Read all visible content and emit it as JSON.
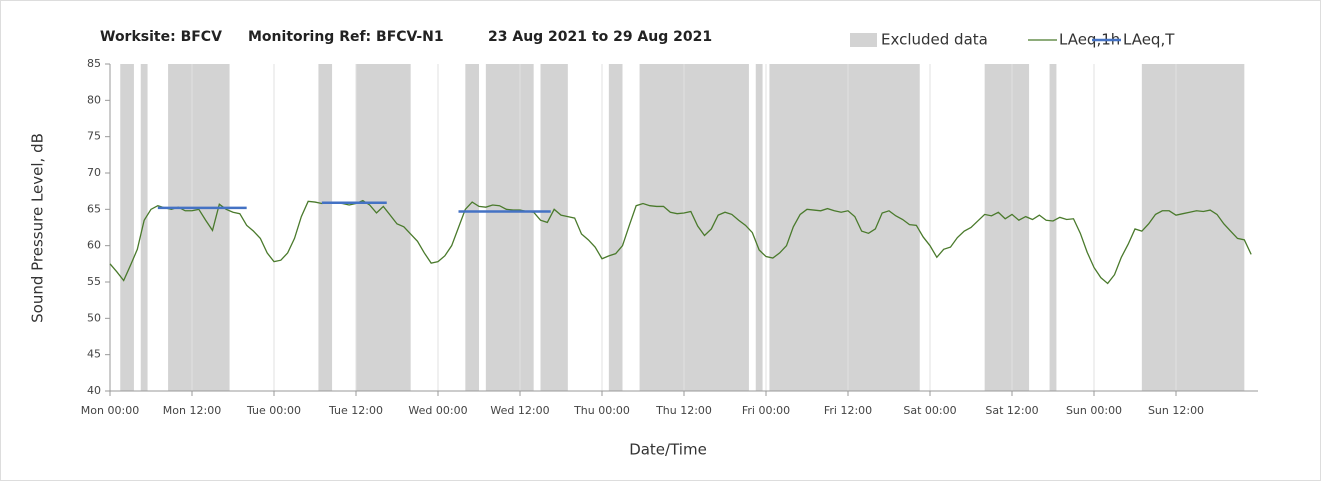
{
  "chart_data": {
    "type": "line",
    "title": [
      "Worksite: BFCV",
      "Monitoring Ref: BFCV-N1",
      "23 Aug 2021 to 29 Aug 2021"
    ],
    "xlabel": "Date/Time",
    "ylabel": "Sound Pressure Level, dB",
    "xlim": [
      0,
      168
    ],
    "xticks": [
      {
        "value": 0,
        "label": "Mon 00:00"
      },
      {
        "value": 12,
        "label": "Mon 12:00"
      },
      {
        "value": 24,
        "label": "Tue 00:00"
      },
      {
        "value": 36,
        "label": "Tue 12:00"
      },
      {
        "value": 48,
        "label": "Wed 00:00"
      },
      {
        "value": 60,
        "label": "Wed 12:00"
      },
      {
        "value": 72,
        "label": "Thu 00:00"
      },
      {
        "value": 84,
        "label": "Thu 12:00"
      },
      {
        "value": 96,
        "label": "Fri 00:00"
      },
      {
        "value": 108,
        "label": "Fri 12:00"
      },
      {
        "value": 120,
        "label": "Sat 00:00"
      },
      {
        "value": 132,
        "label": "Sat 12:00"
      },
      {
        "value": 144,
        "label": "Sun 00:00"
      },
      {
        "value": 156,
        "label": "Sun 12:00"
      }
    ],
    "ylim": [
      40,
      85
    ],
    "yticks": [
      40,
      45,
      50,
      55,
      60,
      65,
      70,
      75,
      80,
      85
    ],
    "grid": true,
    "excluded_name": "Excluded data",
    "excluded_color": "#d3d3d3",
    "excluded": [
      [
        1.5,
        3.5
      ],
      [
        4.5,
        5.5
      ],
      [
        8.5,
        17.5
      ],
      [
        30.5,
        32.5
      ],
      [
        36,
        44
      ],
      [
        52,
        54
      ],
      [
        55,
        62
      ],
      [
        63,
        67
      ],
      [
        73,
        75
      ],
      [
        77.5,
        93.5
      ],
      [
        94.5,
        95.5
      ],
      [
        96.5,
        118.5
      ],
      [
        128,
        134.5
      ],
      [
        137.5,
        138.5
      ],
      [
        151,
        166
      ]
    ],
    "series": [
      {
        "name": "LAeq,1h",
        "color": "#4a7a2c",
        "x": [
          0,
          1,
          2,
          3,
          4,
          5,
          6,
          7,
          8,
          9,
          10,
          11,
          12,
          13,
          14,
          15,
          16,
          17,
          18,
          19,
          20,
          21,
          22,
          23,
          24,
          25,
          26,
          27,
          28,
          29,
          30,
          31,
          32,
          33,
          34,
          35,
          36,
          37,
          38,
          39,
          40,
          41,
          42,
          43,
          44,
          45,
          46,
          47,
          48,
          49,
          50,
          51,
          52,
          53,
          54,
          55,
          56,
          57,
          58,
          59,
          60,
          61,
          62,
          63,
          64,
          65,
          66,
          67,
          68,
          69,
          70,
          71,
          72,
          73,
          74,
          75,
          76,
          77,
          78,
          79,
          80,
          81,
          82,
          83,
          84,
          85,
          86,
          87,
          88,
          89,
          90,
          91,
          92,
          93,
          94,
          95,
          96,
          97,
          98,
          99,
          100,
          101,
          102,
          103,
          104,
          105,
          106,
          107,
          108,
          109,
          110,
          111,
          112,
          113,
          114,
          115,
          116,
          117,
          118,
          119,
          120,
          121,
          122,
          123,
          124,
          125,
          126,
          127,
          128,
          129,
          130,
          131,
          132,
          133,
          134,
          135,
          136,
          137,
          138,
          139,
          140,
          141,
          142,
          143,
          144,
          145,
          146,
          147,
          148,
          149,
          150,
          151,
          152,
          153,
          154,
          155,
          156,
          157,
          158,
          159,
          160,
          161,
          162,
          163,
          164,
          165,
          166,
          167
        ],
        "values": [
          57.5,
          56.4,
          55.2,
          57.3,
          59.5,
          63.5,
          65,
          65.5,
          65.2,
          65,
          65.3,
          64.8,
          64.8,
          65,
          63.5,
          62.1,
          65.7,
          65,
          64.6,
          64.4,
          62.8,
          62,
          61,
          59,
          57.8,
          58,
          59,
          61,
          64,
          66.1,
          66,
          65.8,
          65.9,
          65.9,
          65.8,
          65.6,
          65.8,
          66.2,
          65.6,
          64.5,
          65.4,
          64.2,
          63,
          62.6,
          61.6,
          60.6,
          59,
          57.6,
          57.8,
          58.6,
          60,
          62.5,
          65,
          66,
          65.4,
          65.3,
          65.6,
          65.5,
          65,
          64.9,
          64.9,
          64.7,
          64.6,
          63.5,
          63.2,
          65,
          64.2,
          64,
          63.8,
          61.6,
          60.8,
          59.8,
          58.2,
          58.6,
          58.9,
          60,
          62.8,
          65.5,
          65.8,
          65.5,
          65.4,
          65.4,
          64.6,
          64.4,
          64.5,
          64.7,
          62.7,
          61.4,
          62.3,
          64.2,
          64.6,
          64.3,
          63.5,
          62.8,
          61.8,
          59.4,
          58.5,
          58.3,
          59,
          60,
          62.6,
          64.3,
          65,
          64.9,
          64.8,
          65.1,
          64.8,
          64.6,
          64.8,
          64,
          62,
          61.7,
          62.3,
          64.5,
          64.8,
          64.1,
          63.6,
          62.9,
          62.8,
          61.2,
          60,
          58.4,
          59.5,
          59.8,
          61.1,
          62,
          62.5,
          63.4,
          64.3,
          64.1,
          64.6,
          63.7,
          64.3,
          63.5,
          64,
          63.6,
          64.2,
          63.5,
          63.4,
          63.9,
          63.6,
          63.7,
          61.7,
          59.1,
          57,
          55.6,
          54.8,
          56,
          58.4,
          60.2,
          62.3,
          62,
          63,
          64.3,
          64.8,
          64.8,
          64.2,
          64.4,
          64.6,
          64.8,
          64.7,
          64.9,
          64.3,
          63,
          62,
          61,
          60.8,
          58.8
        ]
      },
      {
        "name": "LAeq,T",
        "color": "#4472c4",
        "segments": [
          {
            "x": [
              7,
              20
            ],
            "value": 65.2
          },
          {
            "x": [
              31,
              40.5
            ],
            "value": 65.9
          },
          {
            "x": [
              51,
              64.5
            ],
            "value": 64.7
          }
        ]
      }
    ]
  }
}
